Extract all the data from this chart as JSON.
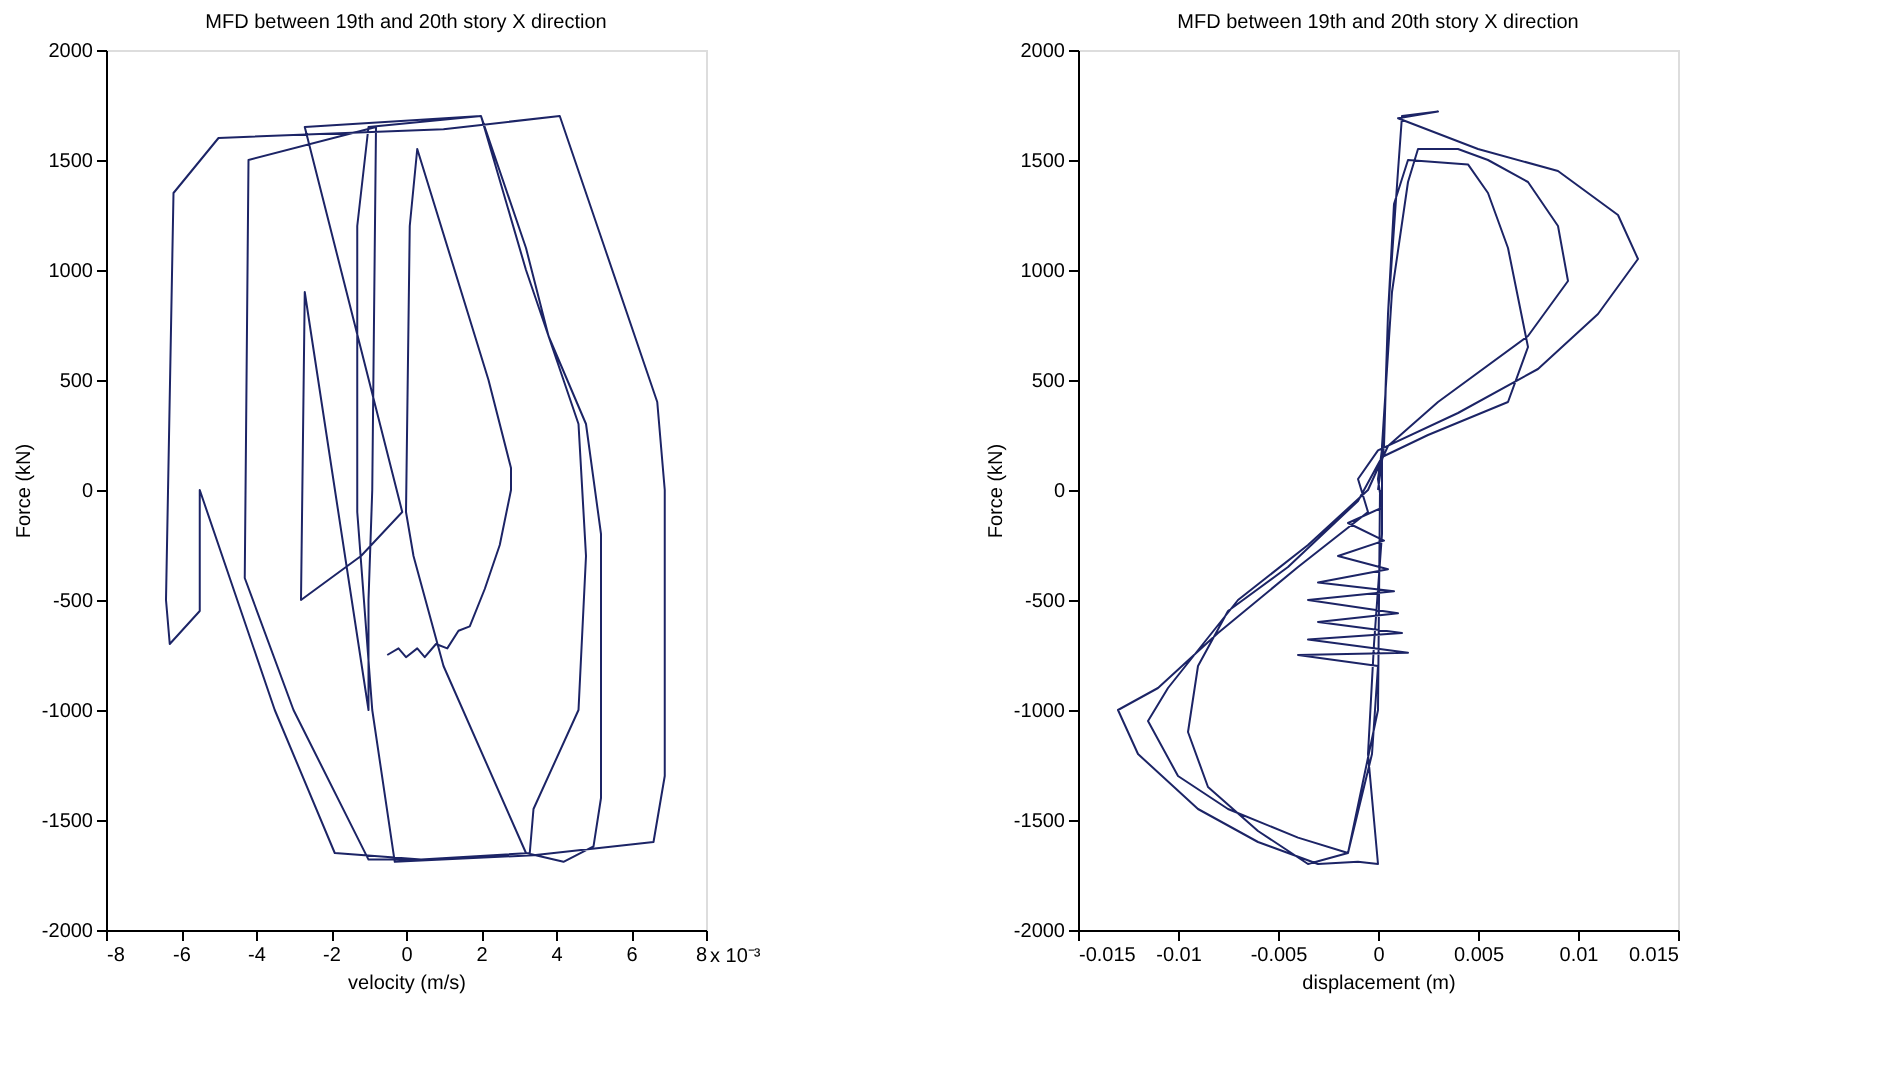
{
  "chart_data": [
    {
      "type": "line",
      "title": "MFD between 19th and 20th story X direction",
      "xlabel": "velocity (m/s)",
      "ylabel": "Force (kN)",
      "annotations": [
        "x 10⁻³"
      ],
      "xlim": [
        -8,
        8
      ],
      "xticks": [
        -8,
        -6,
        -4,
        -2,
        0,
        2,
        4,
        6,
        8
      ],
      "ylim": [
        -2000,
        2000
      ],
      "yticks": [
        -2000,
        -1500,
        -1000,
        -500,
        0,
        500,
        1000,
        1500,
        2000
      ],
      "grid": false,
      "series": [
        {
          "color": "#1c2466",
          "x": [
            -0.5,
            -0.2,
            0,
            0.3,
            0.5,
            0.8,
            1.1,
            1.4,
            1.7,
            2.1,
            2.5,
            2.8,
            2.8,
            2.2,
            0.3,
            0.1,
            0,
            0.2,
            1.0,
            3.2,
            4.2,
            5.0,
            5.2,
            5.2,
            4.8,
            3.8,
            3.2,
            2.0,
            -1.0,
            -1.3,
            -1.3,
            -0.9,
            -0.3,
            3.4,
            6.6,
            6.9,
            6.9,
            6.7,
            5.3,
            4.1,
            1.0,
            -5.0,
            -6.2,
            -6.4,
            -6.3,
            -5.5,
            -5.5,
            -3.5,
            -1.9,
            0.4,
            3.3,
            3.4,
            4.6,
            4.8,
            4.6,
            3.2,
            2.0,
            -2.7,
            -0.1,
            -1.2,
            -2.8,
            -2.7,
            -1.0,
            -1.0,
            -0.9,
            -0.8,
            -4.2,
            -4.3,
            -3.0,
            -1.0,
            1.0
          ],
          "values": [
            -750,
            -720,
            -760,
            -720,
            -760,
            -700,
            -720,
            -640,
            -620,
            -450,
            -250,
            0,
            100,
            500,
            1550,
            1200,
            -100,
            -300,
            -800,
            -1650,
            -1690,
            -1620,
            -1400,
            -200,
            300,
            700,
            1100,
            1700,
            1650,
            1200,
            -100,
            -1000,
            -1690,
            -1660,
            -1600,
            -1300,
            0,
            400,
            1100,
            1700,
            1640,
            1600,
            1350,
            -500,
            -700,
            -550,
            0,
            -1000,
            -1650,
            -1680,
            -1650,
            -1450,
            -1000,
            -300,
            300,
            1000,
            1700,
            1650,
            -100,
            -300,
            -500,
            900,
            -1000,
            -500,
            0,
            1650,
            1500,
            -400,
            -1000,
            -1680,
            -1680
          ]
        }
      ]
    },
    {
      "type": "line",
      "title": "MFD between 19th and 20th story X direction",
      "xlabel": "displacement (m)",
      "ylabel": "Force (kN)",
      "xlim": [
        -0.015,
        0.015
      ],
      "xticks": [
        -0.015,
        -0.01,
        -0.005,
        0,
        0.005,
        0.01,
        0.015
      ],
      "ylim": [
        -2000,
        2000
      ],
      "yticks": [
        -2000,
        -1500,
        -1000,
        -500,
        0,
        500,
        1000,
        1500,
        2000
      ],
      "grid": false,
      "series": [
        {
          "color": "#1c2466",
          "x": [
            0,
            0.0003,
            0.0005,
            0.001,
            0.0012,
            0.003,
            0.001,
            0.005,
            0.009,
            0.012,
            0.013,
            0.011,
            0.008,
            0.004,
            0,
            -0.001,
            -0.0005,
            -0.004,
            -0.008,
            -0.011,
            -0.013,
            -0.012,
            -0.009,
            -0.006,
            -0.003,
            -0.001,
            0,
            -0.0005,
            -0.0002,
            0.0002,
            0.0002,
            0.0007,
            0.0015,
            0.002,
            0.004,
            0.0055,
            0.0075,
            0.009,
            0.0095,
            0.0075,
            0.003,
            0.0005,
            -0.0005,
            -0.0035,
            -0.007,
            -0.0105,
            -0.0115,
            -0.01,
            -0.0075,
            -0.004,
            -0.0015,
            -0.0003,
            0,
            -0.004,
            0.0015,
            -0.0035,
            0.0012,
            -0.003,
            0.001,
            -0.0035,
            0.0008,
            -0.003,
            0.0005,
            -0.002,
            0.0003,
            -0.0015,
            0.0002,
            0,
            0.0003,
            0.0005,
            0.0008,
            0.0015,
            0.0045,
            0.0055,
            0.0065,
            0.0075,
            0.0065,
            0.0025,
            0.0002,
            -0.001,
            -0.0045,
            -0.0075,
            -0.009,
            -0.0095,
            -0.0085,
            -0.006,
            -0.0035,
            -0.0015,
            0,
            0.0001
          ],
          "values": [
            0,
            200,
            800,
            1450,
            1700,
            1720,
            1690,
            1550,
            1450,
            1250,
            1050,
            800,
            550,
            350,
            180,
            50,
            -100,
            -350,
            -650,
            -900,
            -1000,
            -1200,
            -1450,
            -1600,
            -1700,
            -1690,
            -1700,
            -1200,
            -700,
            -200,
            200,
            900,
            1400,
            1550,
            1550,
            1500,
            1400,
            1200,
            950,
            700,
            400,
            200,
            0,
            -250,
            -500,
            -900,
            -1050,
            -1300,
            -1450,
            -1580,
            -1650,
            -1200,
            -800,
            -750,
            -740,
            -680,
            -650,
            -600,
            -560,
            -500,
            -460,
            -420,
            -360,
            -300,
            -230,
            -150,
            -80,
            50,
            250,
            800,
            1300,
            1500,
            1480,
            1350,
            1100,
            650,
            400,
            250,
            150,
            -50,
            -350,
            -550,
            -800,
            -1100,
            -1350,
            -1550,
            -1700,
            -1650,
            -1000,
            0
          ]
        }
      ]
    }
  ]
}
